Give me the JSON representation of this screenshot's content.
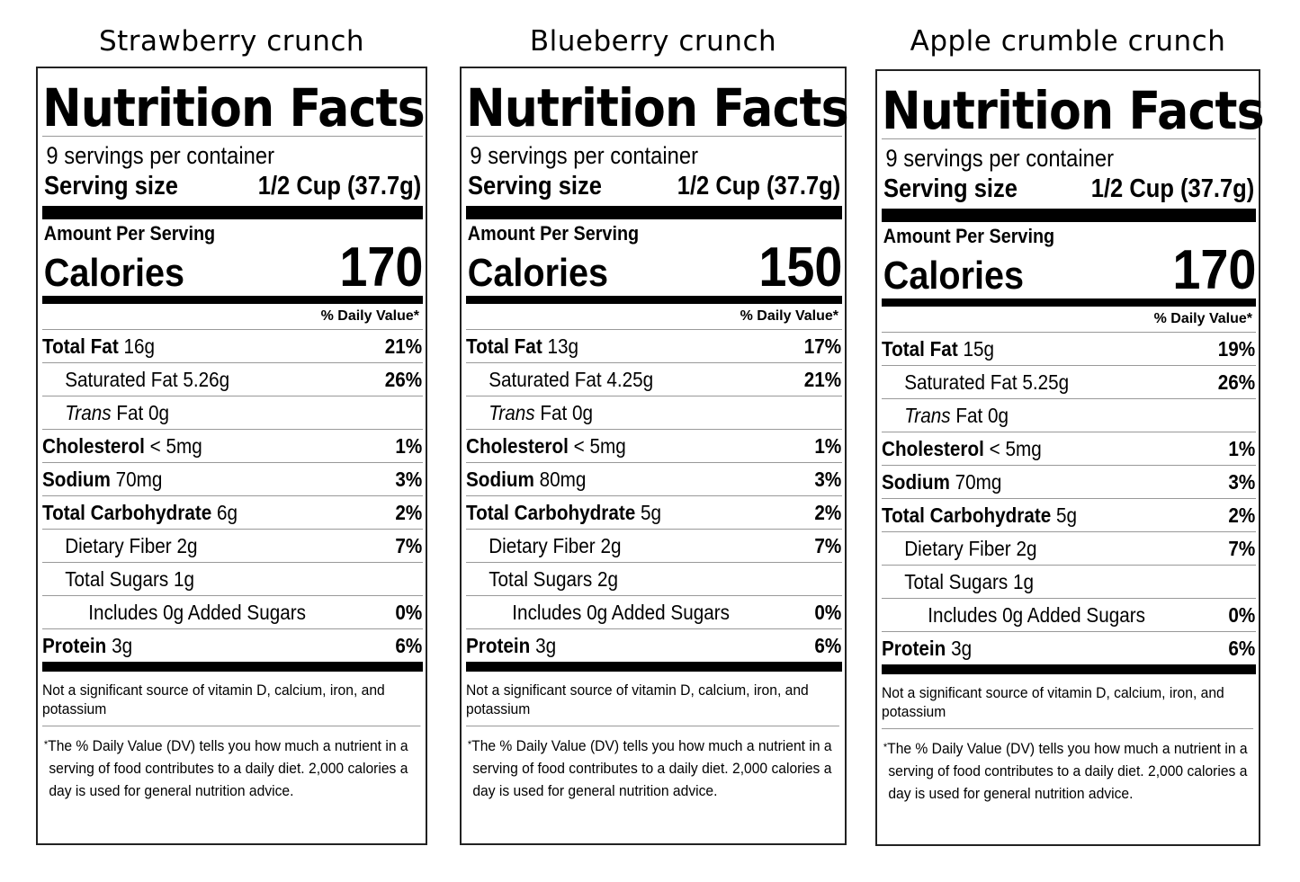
{
  "common": {
    "nf_title": "Nutrition Facts",
    "servings_per_container": "9 servings per container",
    "serving_size_label": "Serving size",
    "serving_size_value": "1/2 Cup (37.7g)",
    "amount_per_serving": "Amount Per Serving",
    "calories_label": "Calories",
    "daily_value_header": "% Daily Value*",
    "labels": {
      "total_fat": "Total Fat",
      "saturated_fat": "Saturated Fat",
      "trans_italic": "Trans",
      "trans_fat": "Fat",
      "cholesterol": "Cholesterol",
      "sodium": "Sodium",
      "total_carbohydrate": "Total Carbohydrate",
      "dietary_fiber": "Dietary Fiber",
      "total_sugars": "Total Sugars",
      "includes_prefix": "Includes",
      "added_sugars_suffix": "Added Sugars",
      "protein": "Protein"
    },
    "vitamins_note": "Not a significant source of vitamin D, calcium, iron, and potassium",
    "dv_asterisk": "*",
    "dv_note_line1": "The % Daily Value (DV) tells you how much a nutrient in a",
    "dv_note_line2": "serving of food contributes to a daily diet. 2,000 calories a",
    "dv_note_line3": "day is used for general nutrition advice."
  },
  "products": [
    {
      "name": "Strawberry crunch",
      "calories": "170",
      "total_fat": "16g",
      "total_fat_dv": "21%",
      "saturated_fat": "5.26g",
      "saturated_fat_dv": "26%",
      "trans_fat": "0g",
      "cholesterol": "< 5mg",
      "cholesterol_dv": "1%",
      "sodium": "70mg",
      "sodium_dv": "3%",
      "total_carbohydrate": "6g",
      "total_carbohydrate_dv": "2%",
      "dietary_fiber": "2g",
      "dietary_fiber_dv": "7%",
      "total_sugars": "1g",
      "added_sugars": "0g",
      "added_sugars_dv": "0%",
      "protein": "3g",
      "protein_dv": "6%"
    },
    {
      "name": "Blueberry crunch",
      "calories": "150",
      "total_fat": "13g",
      "total_fat_dv": "17%",
      "saturated_fat": "4.25g",
      "saturated_fat_dv": "21%",
      "trans_fat": "0g",
      "cholesterol": "< 5mg",
      "cholesterol_dv": "1%",
      "sodium": "80mg",
      "sodium_dv": "3%",
      "total_carbohydrate": "5g",
      "total_carbohydrate_dv": "2%",
      "dietary_fiber": "2g",
      "dietary_fiber_dv": "7%",
      "total_sugars": "2g",
      "added_sugars": "0g",
      "added_sugars_dv": "0%",
      "protein": "3g",
      "protein_dv": "6%"
    },
    {
      "name": "Apple crumble crunch",
      "calories": "170",
      "total_fat": "15g",
      "total_fat_dv": "19%",
      "saturated_fat": "5.25g",
      "saturated_fat_dv": "26%",
      "trans_fat": "0g",
      "cholesterol": "< 5mg",
      "cholesterol_dv": "1%",
      "sodium": "70mg",
      "sodium_dv": "3%",
      "total_carbohydrate": "5g",
      "total_carbohydrate_dv": "2%",
      "dietary_fiber": "2g",
      "dietary_fiber_dv": "7%",
      "total_sugars": "1g",
      "added_sugars": "0g",
      "added_sugars_dv": "0%",
      "protein": "3g",
      "protein_dv": "6%"
    }
  ]
}
